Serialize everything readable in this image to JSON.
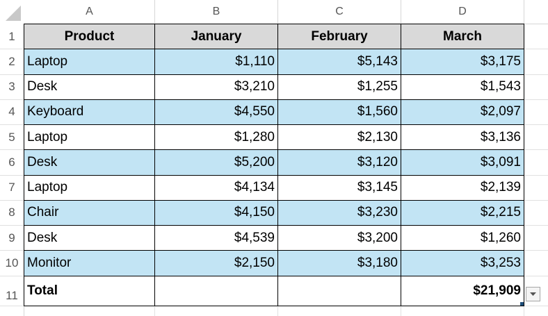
{
  "sheet": {
    "columns": [
      "A",
      "B",
      "C",
      "D"
    ],
    "row_numbers": [
      1,
      2,
      3,
      4,
      5,
      6,
      7,
      8,
      9,
      10,
      11
    ],
    "table": {
      "header": [
        "Product",
        "January",
        "February",
        "March"
      ],
      "rows": [
        [
          "Laptop",
          "$1,110",
          "$5,143",
          "$3,175"
        ],
        [
          "Desk",
          "$3,210",
          "$1,255",
          "$1,543"
        ],
        [
          "Keyboard",
          "$4,550",
          "$1,560",
          "$2,097"
        ],
        [
          "Laptop",
          "$1,280",
          "$2,130",
          "$3,136"
        ],
        [
          "Desk",
          "$5,200",
          "$3,120",
          "$3,091"
        ],
        [
          "Laptop",
          "$4,134",
          "$3,145",
          "$2,139"
        ],
        [
          "Chair",
          "$4,150",
          "$3,230",
          "$2,215"
        ],
        [
          "Desk",
          "$4,539",
          "$3,200",
          "$1,260"
        ],
        [
          "Monitor",
          "$2,150",
          "$3,180",
          "$3,253"
        ]
      ],
      "total": {
        "label": "Total",
        "value": "$21,909"
      }
    }
  }
}
